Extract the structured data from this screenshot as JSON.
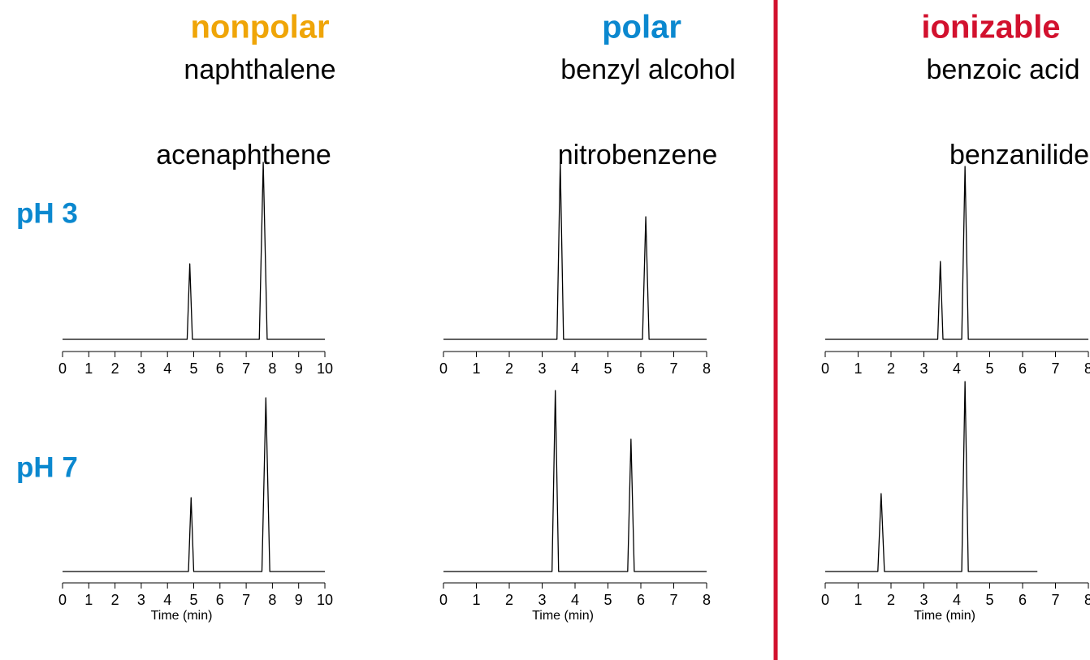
{
  "columns": [
    {
      "group": "nonpolar",
      "color": "#efa508",
      "compounds": [
        "naphthalene",
        "acenaphthene"
      ]
    },
    {
      "group": "polar",
      "color": "#0b88cf",
      "compounds": [
        "benzyl alcohol",
        "nitrobenzene"
      ]
    },
    {
      "group": "ionizable",
      "color": "#d2112e",
      "compounds": [
        "benzoic acid",
        "benzanilide"
      ]
    }
  ],
  "rows": [
    {
      "label": "pH 3",
      "color": "#0b88cf"
    },
    {
      "label": "pH 7",
      "color": "#0b88cf"
    }
  ],
  "divider_color": "#d2112e",
  "chart_data": [
    {
      "type": "line",
      "color": "#000000",
      "x": [
        0,
        4.75,
        4.85,
        4.95,
        7.5,
        7.65,
        7.8,
        10
      ],
      "values": [
        0,
        0,
        93,
        0,
        0,
        218,
        0,
        0
      ],
      "xlim": [
        0,
        10
      ],
      "xticks": [
        0,
        1,
        2,
        3,
        4,
        5,
        6,
        7,
        8,
        9,
        10
      ],
      "ylim": [
        0,
        240
      ]
    },
    {
      "type": "line",
      "color": "#000000",
      "x": [
        0,
        3.45,
        3.55,
        3.65,
        6.05,
        6.15,
        6.25,
        8
      ],
      "values": [
        0,
        0,
        218,
        0,
        0,
        151,
        0,
        0
      ],
      "xlim": [
        0,
        8
      ],
      "xticks": [
        0,
        1,
        2,
        3,
        4,
        5,
        6,
        7,
        8
      ],
      "ylim": [
        0,
        240
      ]
    },
    {
      "type": "line",
      "color": "#000000",
      "x": [
        0,
        3.42,
        3.5,
        3.58,
        4.15,
        4.25,
        4.35,
        8
      ],
      "values": [
        0,
        0,
        96,
        0,
        0,
        213,
        0,
        0
      ],
      "xlim": [
        0,
        8
      ],
      "xticks": [
        0,
        1,
        2,
        3,
        4,
        5,
        6,
        7,
        8
      ],
      "ylim": [
        0,
        240
      ]
    },
    {
      "type": "line",
      "color": "#000000",
      "x": [
        0,
        4.8,
        4.9,
        5.0,
        7.6,
        7.75,
        7.9,
        10
      ],
      "values": [
        0,
        0,
        91,
        0,
        0,
        214,
        0,
        0
      ],
      "xlim": [
        0,
        10
      ],
      "xticks": [
        0,
        1,
        2,
        3,
        4,
        5,
        6,
        7,
        8,
        9,
        10
      ],
      "ylim": [
        0,
        240
      ],
      "xlabel": "Time (min)"
    },
    {
      "type": "line",
      "color": "#000000",
      "x": [
        0,
        3.3,
        3.4,
        3.5,
        5.6,
        5.7,
        5.8,
        8
      ],
      "values": [
        0,
        0,
        223,
        0,
        0,
        163,
        0,
        0
      ],
      "xlim": [
        0,
        8
      ],
      "xticks": [
        0,
        1,
        2,
        3,
        4,
        5,
        6,
        7,
        8
      ],
      "ylim": [
        0,
        240
      ],
      "xlabel": "Time (min)"
    },
    {
      "type": "line",
      "color": "#000000",
      "x": [
        0,
        1.6,
        1.7,
        1.8,
        4.15,
        4.25,
        4.35,
        6.45
      ],
      "values": [
        0,
        0,
        96,
        0,
        0,
        234,
        0,
        0
      ],
      "xlim": [
        0,
        8
      ],
      "xticks": [
        0,
        1,
        2,
        3,
        4,
        5,
        6,
        7,
        8
      ],
      "ylim": [
        0,
        240
      ],
      "xlabel": "Time (min)"
    }
  ]
}
